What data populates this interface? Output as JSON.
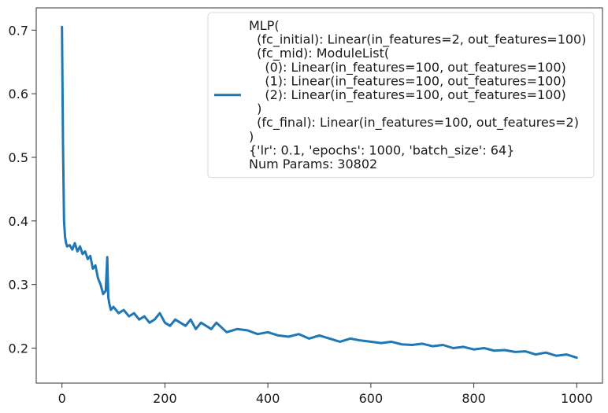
{
  "chart_data": {
    "type": "line",
    "title": "",
    "xlabel": "",
    "ylabel": "",
    "xlim": [
      -50,
      1050
    ],
    "ylim": [
      0.145,
      0.735
    ],
    "xticks": [
      0,
      200,
      400,
      600,
      800,
      1000
    ],
    "yticks": [
      0.2,
      0.3,
      0.4,
      0.5,
      0.6,
      0.7
    ],
    "grid": false,
    "legend_position": "top-right",
    "series": [
      {
        "name": "MLP(\n  (fc_initial): Linear(in_features=2, out_features=100)\n  (fc_mid): ModuleList(\n    (0): Linear(in_features=100, out_features=100)\n    (1): Linear(in_features=100, out_features=100)\n    (2): Linear(in_features=100, out_features=100)\n  )\n  (fc_final): Linear(in_features=100, out_features=2)\n)\n{'lr': 0.1, 'epochs': 1000, 'batch_size': 64}\nNum Params: 30802",
        "color": "#1f77b4",
        "x": [
          0,
          2,
          4,
          6,
          8,
          10,
          15,
          20,
          25,
          30,
          35,
          40,
          45,
          50,
          55,
          60,
          65,
          70,
          75,
          80,
          85,
          88,
          90,
          92,
          95,
          100,
          110,
          120,
          130,
          140,
          150,
          160,
          170,
          180,
          190,
          200,
          210,
          220,
          230,
          240,
          250,
          260,
          270,
          280,
          290,
          300,
          320,
          340,
          360,
          380,
          400,
          420,
          440,
          460,
          480,
          500,
          520,
          540,
          560,
          580,
          600,
          620,
          640,
          660,
          680,
          700,
          720,
          740,
          760,
          780,
          800,
          820,
          840,
          860,
          880,
          900,
          920,
          940,
          960,
          980,
          1000
        ],
        "y": [
          0.705,
          0.52,
          0.4,
          0.375,
          0.365,
          0.36,
          0.362,
          0.355,
          0.365,
          0.352,
          0.36,
          0.348,
          0.352,
          0.34,
          0.345,
          0.325,
          0.33,
          0.31,
          0.3,
          0.285,
          0.29,
          0.343,
          0.28,
          0.27,
          0.26,
          0.265,
          0.255,
          0.26,
          0.25,
          0.255,
          0.245,
          0.25,
          0.24,
          0.245,
          0.255,
          0.24,
          0.235,
          0.245,
          0.24,
          0.235,
          0.245,
          0.23,
          0.24,
          0.235,
          0.23,
          0.24,
          0.225,
          0.23,
          0.228,
          0.222,
          0.225,
          0.22,
          0.218,
          0.222,
          0.215,
          0.22,
          0.215,
          0.21,
          0.215,
          0.212,
          0.21,
          0.208,
          0.21,
          0.206,
          0.205,
          0.207,
          0.203,
          0.205,
          0.2,
          0.202,
          0.198,
          0.2,
          0.196,
          0.197,
          0.194,
          0.195,
          0.19,
          0.193,
          0.188,
          0.19,
          0.185
        ]
      }
    ]
  }
}
